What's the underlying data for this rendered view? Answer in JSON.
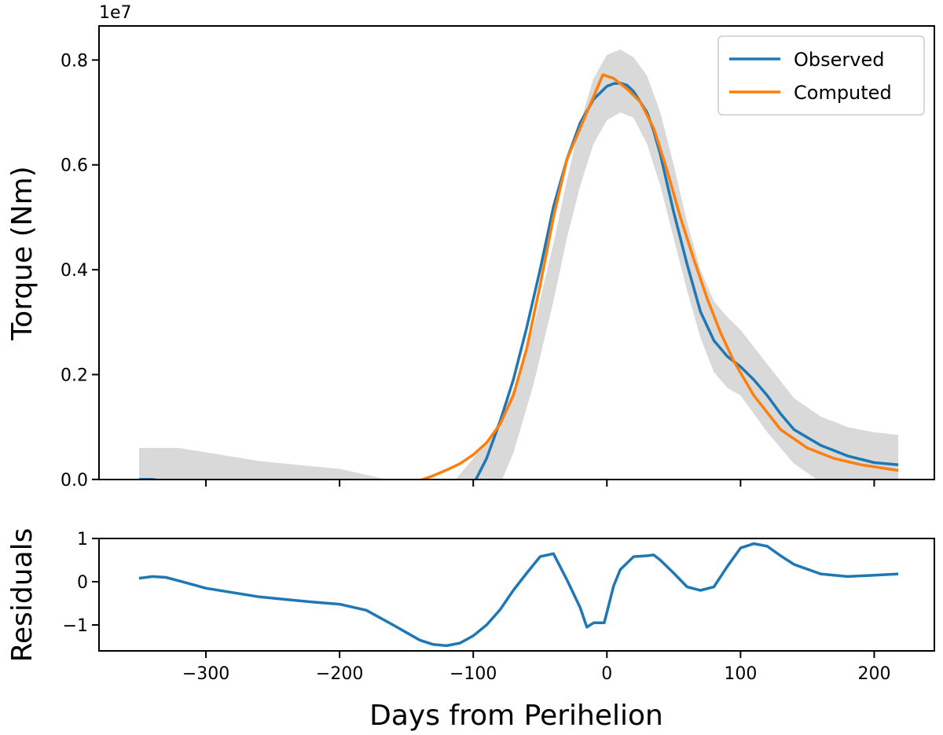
{
  "chart_data": [
    {
      "type": "line",
      "panel": "main",
      "xlim": [
        -380,
        245
      ],
      "ylim": [
        -0.00018,
        0.865
      ],
      "y_offset_text": "1e7",
      "ylabel": "Torque (Nm)",
      "xlabel": "",
      "x_ticks": [
        -300,
        -200,
        -100,
        0,
        100,
        200
      ],
      "y_ticks": [
        0.0,
        0.2,
        0.4,
        0.6,
        0.8
      ],
      "y_tick_labels": [
        "0.0",
        "0.2",
        "0.4",
        "0.6",
        "0.8"
      ],
      "legend": {
        "placement": "top-right",
        "entries": [
          "Observed",
          "Computed"
        ]
      },
      "grid": false,
      "band": {
        "color": "#d9d9d9",
        "x": [
          -350,
          -320,
          -260,
          -200,
          -170,
          -150,
          -130,
          -115,
          -100,
          -85,
          -70,
          -55,
          -40,
          -30,
          -20,
          -10,
          0,
          10,
          20,
          30,
          40,
          50,
          60,
          70,
          80,
          90,
          100,
          120,
          140,
          160,
          180,
          200,
          218
        ],
        "upper": [
          0.06,
          0.06,
          0.035,
          0.02,
          0.003,
          -0.015,
          -0.02,
          -0.005,
          0.04,
          0.09,
          0.17,
          0.29,
          0.45,
          0.57,
          0.68,
          0.765,
          0.81,
          0.82,
          0.805,
          0.77,
          0.7,
          0.6,
          0.49,
          0.4,
          0.34,
          0.31,
          0.285,
          0.22,
          0.155,
          0.12,
          0.1,
          0.09,
          0.085
        ],
        "lower": [
          -0.06,
          -0.06,
          -0.07,
          -0.085,
          -0.11,
          -0.13,
          -0.14,
          -0.135,
          -0.105,
          -0.04,
          0.05,
          0.18,
          0.34,
          0.46,
          0.56,
          0.64,
          0.685,
          0.7,
          0.69,
          0.64,
          0.56,
          0.46,
          0.36,
          0.27,
          0.205,
          0.175,
          0.16,
          0.09,
          0.03,
          -0.005,
          -0.02,
          -0.025,
          -0.03
        ]
      },
      "series": [
        {
          "name": "Observed",
          "color": "#1f77b4",
          "x": [
            -350,
            -340,
            -320,
            -300,
            -260,
            -220,
            -200,
            -180,
            -160,
            -150,
            -140,
            -130,
            -120,
            -110,
            -100,
            -90,
            -80,
            -70,
            -60,
            -50,
            -40,
            -30,
            -20,
            -10,
            0,
            5,
            10,
            15,
            20,
            25,
            30,
            35,
            40,
            50,
            60,
            70,
            80,
            90,
            100,
            110,
            120,
            130,
            140,
            160,
            180,
            200,
            218
          ],
          "y": [
            0.0,
            0.0,
            -0.007,
            -0.015,
            -0.03,
            -0.038,
            -0.042,
            -0.052,
            -0.067,
            -0.075,
            -0.08,
            -0.078,
            -0.068,
            -0.045,
            -0.01,
            0.04,
            0.11,
            0.19,
            0.29,
            0.4,
            0.52,
            0.61,
            0.68,
            0.725,
            0.75,
            0.755,
            0.756,
            0.752,
            0.74,
            0.72,
            0.7,
            0.665,
            0.62,
            0.51,
            0.41,
            0.32,
            0.265,
            0.235,
            0.215,
            0.19,
            0.16,
            0.125,
            0.095,
            0.065,
            0.045,
            0.032,
            0.028
          ]
        },
        {
          "name": "Computed",
          "color": "#ff7f0e",
          "x": [
            -350,
            -300,
            -250,
            -200,
            -180,
            -160,
            -150,
            -140,
            -130,
            -120,
            -110,
            -100,
            -90,
            -80,
            -70,
            -60,
            -50,
            -40,
            -30,
            -15,
            -3,
            5,
            15,
            25,
            35,
            45,
            55,
            65,
            75,
            85,
            95,
            110,
            130,
            150,
            170,
            190,
            218
          ],
          "y": [
            -0.007,
            -0.009,
            -0.011,
            -0.013,
            -0.013,
            -0.011,
            -0.008,
            -0.002,
            0.007,
            0.018,
            0.03,
            0.047,
            0.07,
            0.105,
            0.16,
            0.25,
            0.37,
            0.5,
            0.61,
            0.7,
            0.772,
            0.765,
            0.745,
            0.72,
            0.67,
            0.59,
            0.5,
            0.42,
            0.345,
            0.28,
            0.225,
            0.16,
            0.095,
            0.06,
            0.04,
            0.028,
            0.017
          ]
        }
      ]
    },
    {
      "type": "line",
      "panel": "residuals",
      "xlim": [
        -380,
        245
      ],
      "ylim": [
        -1.6,
        1.0
      ],
      "ylabel": "Residuals",
      "xlabel": "Days from Perihelion",
      "x_ticks": [
        -300,
        -200,
        -100,
        0,
        100,
        200
      ],
      "x_tick_labels": [
        "−300",
        "−200",
        "−100",
        "0",
        "100",
        "200"
      ],
      "y_ticks": [
        -1,
        0,
        1
      ],
      "y_tick_labels": [
        "−1",
        "0",
        "1"
      ],
      "grid": false,
      "series": [
        {
          "color": "#1f77b4",
          "x": [
            -350,
            -340,
            -330,
            -320,
            -300,
            -260,
            -220,
            -200,
            -180,
            -160,
            -140,
            -130,
            -120,
            -110,
            -100,
            -90,
            -80,
            -70,
            -60,
            -50,
            -40,
            -30,
            -20,
            -15,
            -10,
            -5,
            -2,
            5,
            10,
            20,
            30,
            35,
            40,
            50,
            60,
            70,
            80,
            90,
            100,
            110,
            120,
            130,
            140,
            160,
            180,
            200,
            218
          ],
          "y": [
            0.08,
            0.12,
            0.1,
            0.02,
            -0.15,
            -0.35,
            -0.47,
            -0.52,
            -0.66,
            -1.0,
            -1.35,
            -1.45,
            -1.48,
            -1.42,
            -1.25,
            -1.0,
            -0.65,
            -0.2,
            0.2,
            0.58,
            0.65,
            0.05,
            -0.6,
            -1.05,
            -0.95,
            -0.95,
            -0.95,
            -0.1,
            0.28,
            0.58,
            0.6,
            0.62,
            0.5,
            0.2,
            -0.12,
            -0.2,
            -0.12,
            0.35,
            0.78,
            0.88,
            0.82,
            0.6,
            0.4,
            0.18,
            0.12,
            0.15,
            0.18
          ]
        }
      ]
    }
  ]
}
